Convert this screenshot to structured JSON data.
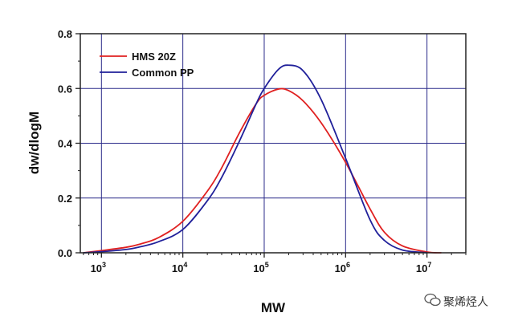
{
  "chart_data": {
    "type": "line",
    "xlabel": "MW",
    "ylabel": "dw/dlogM",
    "x_scale": "log",
    "xlim": [
      550,
      30000000
    ],
    "ylim": [
      0,
      0.8
    ],
    "x_ticks": [
      {
        "value": 1000,
        "base": "10",
        "exp": "3"
      },
      {
        "value": 10000,
        "base": "10",
        "exp": "4"
      },
      {
        "value": 100000,
        "base": "10",
        "exp": "5"
      },
      {
        "value": 1000000,
        "base": "10",
        "exp": "6"
      },
      {
        "value": 10000000,
        "base": "10",
        "exp": "7"
      }
    ],
    "y_ticks": [
      {
        "value": 0,
        "label": "0.0"
      },
      {
        "value": 0.2,
        "label": "0.2"
      },
      {
        "value": 0.4,
        "label": "0.4"
      },
      {
        "value": 0.6,
        "label": "0.6"
      },
      {
        "value": 0.8,
        "label": "0.8"
      }
    ],
    "grid": true,
    "legend_position": "top-left",
    "series": [
      {
        "name": "HMS 20Z",
        "color": "#e02020",
        "points": [
          [
            600,
            0.0
          ],
          [
            1000,
            0.008
          ],
          [
            2000,
            0.02
          ],
          [
            3000,
            0.032
          ],
          [
            5000,
            0.055
          ],
          [
            10000,
            0.115
          ],
          [
            20000,
            0.225
          ],
          [
            30000,
            0.31
          ],
          [
            50000,
            0.44
          ],
          [
            80000,
            0.545
          ],
          [
            100000,
            0.575
          ],
          [
            150000,
            0.598
          ],
          [
            200000,
            0.592
          ],
          [
            300000,
            0.555
          ],
          [
            500000,
            0.475
          ],
          [
            1000000,
            0.33
          ],
          [
            2000000,
            0.16
          ],
          [
            3000000,
            0.075
          ],
          [
            5000000,
            0.025
          ],
          [
            10000000,
            0.003
          ],
          [
            15000000,
            0.0
          ]
        ]
      },
      {
        "name": "Common PP",
        "color": "#20209a",
        "points": [
          [
            600,
            0.0
          ],
          [
            1000,
            0.004
          ],
          [
            2000,
            0.012
          ],
          [
            3000,
            0.022
          ],
          [
            5000,
            0.04
          ],
          [
            10000,
            0.085
          ],
          [
            20000,
            0.19
          ],
          [
            30000,
            0.275
          ],
          [
            50000,
            0.41
          ],
          [
            80000,
            0.545
          ],
          [
            100000,
            0.6
          ],
          [
            150000,
            0.67
          ],
          [
            200000,
            0.685
          ],
          [
            300000,
            0.665
          ],
          [
            500000,
            0.56
          ],
          [
            1000000,
            0.345
          ],
          [
            2000000,
            0.12
          ],
          [
            3000000,
            0.045
          ],
          [
            5000000,
            0.01
          ],
          [
            10000000,
            0.0
          ]
        ]
      }
    ]
  },
  "watermark": {
    "text": "聚烯烃人",
    "icon": "wechat-icon"
  }
}
